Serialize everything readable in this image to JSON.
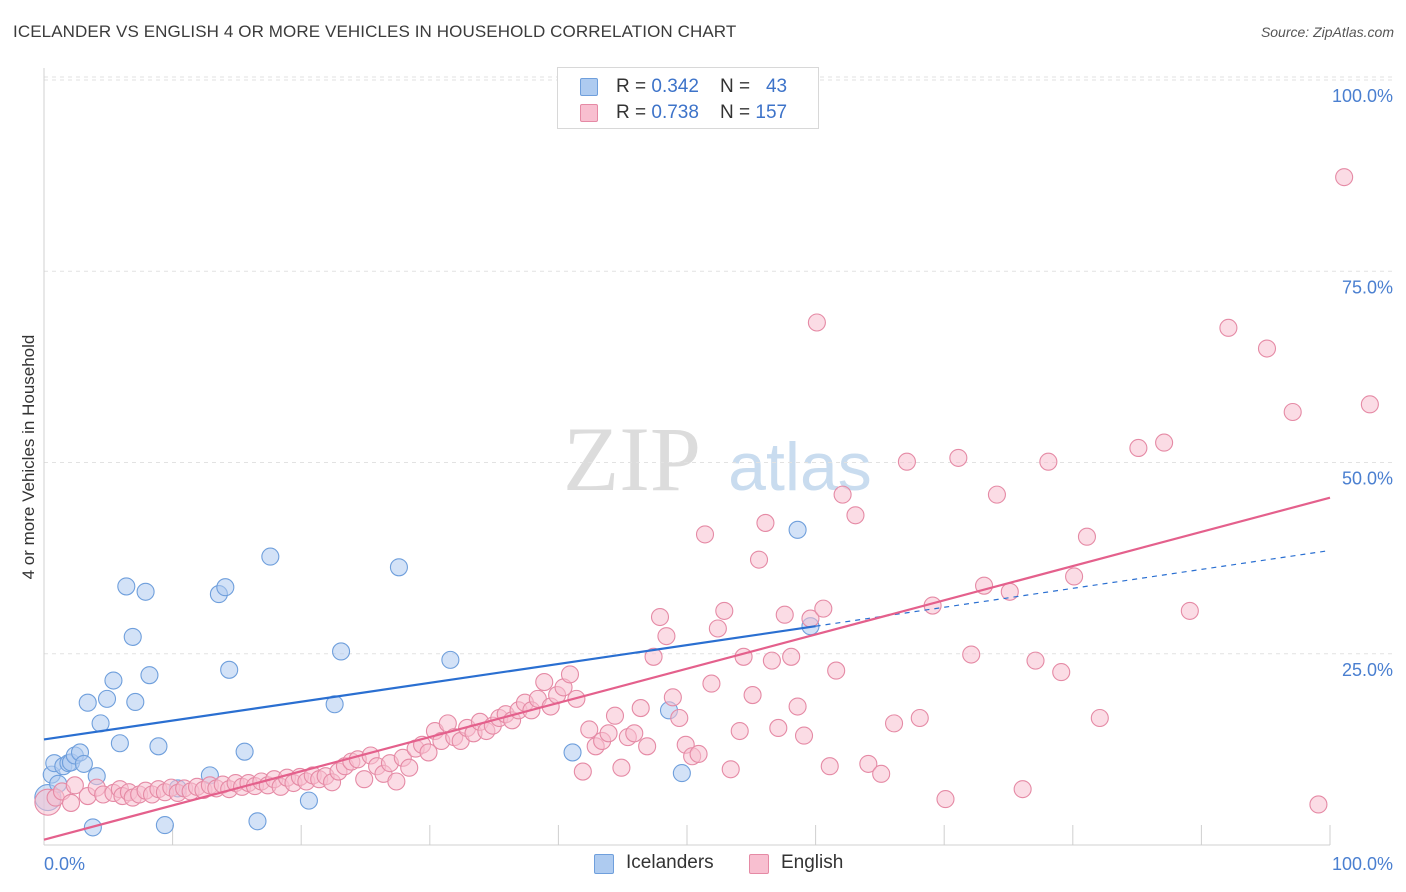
{
  "header": {
    "title": "ICELANDER VS ENGLISH 4 OR MORE VEHICLES IN HOUSEHOLD CORRELATION CHART",
    "source": "Source: ZipAtlas.com"
  },
  "watermark": {
    "zip": "ZIP",
    "atlas": "atlas"
  },
  "legend": {
    "rows": [
      {
        "r_label": "R = ",
        "r_value": "0.342",
        "n_label": "N = ",
        "n_value": "43",
        "color": "#aecbf0",
        "border": "#6f9fdc"
      },
      {
        "r_label": "R = ",
        "r_value": "0.738",
        "n_label": "N = ",
        "n_value": "157",
        "color": "#f8bfd0",
        "border": "#e58aa5"
      }
    ]
  },
  "bottom_legend": [
    {
      "label": "Icelanders",
      "color": "#aecbf0",
      "border": "#6f9fdc"
    },
    {
      "label": "English",
      "color": "#f8bfd0",
      "border": "#e58aa5"
    }
  ],
  "chart_data": {
    "type": "scatter",
    "title": "ICELANDER VS ENGLISH 4 OR MORE VEHICLES IN HOUSEHOLD CORRELATION CHART",
    "xlabel": "",
    "ylabel": "4 or more Vehicles in Household",
    "xlim": [
      0,
      100
    ],
    "ylim": [
      0,
      100
    ],
    "x_tick_labels": [
      "0.0%",
      "100.0%"
    ],
    "y_tick_labels": [
      "25.0%",
      "50.0%",
      "75.0%",
      "100.0%"
    ],
    "y_ticks": [
      25,
      50,
      75,
      100
    ],
    "grid": true,
    "legend_position": "top-center",
    "series": [
      {
        "name": "Icelanders",
        "color": "#aecbf0",
        "stroke": "#6f9fdc",
        "line_color": "#2a6fd1",
        "trend": {
          "x": [
            0,
            60
          ],
          "y": [
            13.8,
            28.6
          ],
          "dashed_to": [
            100,
            38.5
          ]
        },
        "points": [
          [
            0.3,
            6.2
          ],
          [
            0.6,
            9.2
          ],
          [
            0.8,
            10.7
          ],
          [
            1.1,
            8.0
          ],
          [
            1.5,
            10.3
          ],
          [
            1.9,
            10.7
          ],
          [
            2.1,
            10.8
          ],
          [
            2.4,
            11.7
          ],
          [
            2.8,
            12.1
          ],
          [
            3.1,
            10.6
          ],
          [
            3.4,
            18.6
          ],
          [
            3.8,
            2.3
          ],
          [
            4.1,
            9.0
          ],
          [
            4.4,
            15.9
          ],
          [
            4.9,
            19.1
          ],
          [
            5.4,
            21.5
          ],
          [
            5.9,
            13.3
          ],
          [
            6.4,
            33.8
          ],
          [
            6.9,
            27.2
          ],
          [
            7.1,
            18.7
          ],
          [
            7.9,
            33.1
          ],
          [
            8.2,
            22.2
          ],
          [
            8.9,
            12.9
          ],
          [
            9.4,
            2.6
          ],
          [
            10.4,
            7.4
          ],
          [
            12.9,
            9.1
          ],
          [
            13.6,
            32.8
          ],
          [
            14.1,
            33.7
          ],
          [
            14.4,
            22.9
          ],
          [
            15.6,
            12.2
          ],
          [
            16.6,
            3.1
          ],
          [
            17.6,
            37.7
          ],
          [
            20.6,
            5.8
          ],
          [
            22.6,
            18.4
          ],
          [
            23.1,
            25.3
          ],
          [
            27.6,
            36.3
          ],
          [
            31.6,
            24.2
          ],
          [
            41.1,
            12.1
          ],
          [
            48.6,
            17.6
          ],
          [
            49.6,
            9.4
          ],
          [
            58.6,
            41.2
          ],
          [
            59.6,
            28.6
          ]
        ]
      },
      {
        "name": "English",
        "color": "#f8bfd0",
        "stroke": "#e58aa5",
        "line_color": "#e4608c",
        "trend": {
          "x": [
            0,
            100
          ],
          "y": [
            0.7,
            45.4
          ]
        },
        "points": [
          [
            0.3,
            5.6
          ],
          [
            0.9,
            6.2
          ],
          [
            1.4,
            7.0
          ],
          [
            2.1,
            5.5
          ],
          [
            2.4,
            7.8
          ],
          [
            3.4,
            6.4
          ],
          [
            4.1,
            7.5
          ],
          [
            4.6,
            6.6
          ],
          [
            5.4,
            6.8
          ],
          [
            5.9,
            7.3
          ],
          [
            6.1,
            6.4
          ],
          [
            6.6,
            6.9
          ],
          [
            6.9,
            6.2
          ],
          [
            7.4,
            6.6
          ],
          [
            7.9,
            7.1
          ],
          [
            8.4,
            6.6
          ],
          [
            8.9,
            7.3
          ],
          [
            9.4,
            6.9
          ],
          [
            9.9,
            7.5
          ],
          [
            10.4,
            6.8
          ],
          [
            10.9,
            7.4
          ],
          [
            11.4,
            7.0
          ],
          [
            11.9,
            7.6
          ],
          [
            12.4,
            7.2
          ],
          [
            12.9,
            7.8
          ],
          [
            13.4,
            7.4
          ],
          [
            13.9,
            7.9
          ],
          [
            14.4,
            7.3
          ],
          [
            14.9,
            8.1
          ],
          [
            15.4,
            7.6
          ],
          [
            15.9,
            8.1
          ],
          [
            16.4,
            7.7
          ],
          [
            16.9,
            8.3
          ],
          [
            17.4,
            7.8
          ],
          [
            17.9,
            8.6
          ],
          [
            18.4,
            7.6
          ],
          [
            18.9,
            8.8
          ],
          [
            19.4,
            8.1
          ],
          [
            19.9,
            8.9
          ],
          [
            20.4,
            8.3
          ],
          [
            20.9,
            9.1
          ],
          [
            21.4,
            8.6
          ],
          [
            21.9,
            9.0
          ],
          [
            22.4,
            8.2
          ],
          [
            22.9,
            9.6
          ],
          [
            23.4,
            10.3
          ],
          [
            23.9,
            10.9
          ],
          [
            24.4,
            11.2
          ],
          [
            24.9,
            8.6
          ],
          [
            25.4,
            11.7
          ],
          [
            25.9,
            10.3
          ],
          [
            26.4,
            9.3
          ],
          [
            26.9,
            10.7
          ],
          [
            27.4,
            8.3
          ],
          [
            27.9,
            11.4
          ],
          [
            28.4,
            10.1
          ],
          [
            28.9,
            12.6
          ],
          [
            29.4,
            13.1
          ],
          [
            29.9,
            12.1
          ],
          [
            30.4,
            14.9
          ],
          [
            30.9,
            13.6
          ],
          [
            31.4,
            15.9
          ],
          [
            31.9,
            14.1
          ],
          [
            32.4,
            13.6
          ],
          [
            32.9,
            15.3
          ],
          [
            33.4,
            14.6
          ],
          [
            33.9,
            16.1
          ],
          [
            34.4,
            14.9
          ],
          [
            34.9,
            15.6
          ],
          [
            35.4,
            16.6
          ],
          [
            35.9,
            17.1
          ],
          [
            36.4,
            16.3
          ],
          [
            36.9,
            17.6
          ],
          [
            37.4,
            18.6
          ],
          [
            37.9,
            17.6
          ],
          [
            38.4,
            19.1
          ],
          [
            38.9,
            21.3
          ],
          [
            39.4,
            18.1
          ],
          [
            39.9,
            19.6
          ],
          [
            40.4,
            20.6
          ],
          [
            40.9,
            22.3
          ],
          [
            41.4,
            19.1
          ],
          [
            41.9,
            9.6
          ],
          [
            42.4,
            15.1
          ],
          [
            42.9,
            12.9
          ],
          [
            43.4,
            13.6
          ],
          [
            43.9,
            14.6
          ],
          [
            44.4,
            16.9
          ],
          [
            44.9,
            10.1
          ],
          [
            45.4,
            14.1
          ],
          [
            45.9,
            14.6
          ],
          [
            46.4,
            17.9
          ],
          [
            46.9,
            12.9
          ],
          [
            47.4,
            24.6
          ],
          [
            47.9,
            29.8
          ],
          [
            48.4,
            27.3
          ],
          [
            48.9,
            19.3
          ],
          [
            49.4,
            16.6
          ],
          [
            49.9,
            13.1
          ],
          [
            50.4,
            11.6
          ],
          [
            50.9,
            11.9
          ],
          [
            51.4,
            40.6
          ],
          [
            51.9,
            21.1
          ],
          [
            52.4,
            28.3
          ],
          [
            52.9,
            30.6
          ],
          [
            53.4,
            9.9
          ],
          [
            54.1,
            14.9
          ],
          [
            54.4,
            24.6
          ],
          [
            55.1,
            19.6
          ],
          [
            55.6,
            37.3
          ],
          [
            56.1,
            42.1
          ],
          [
            56.6,
            24.1
          ],
          [
            57.1,
            15.3
          ],
          [
            57.6,
            30.1
          ],
          [
            58.1,
            24.6
          ],
          [
            58.6,
            18.1
          ],
          [
            59.1,
            14.3
          ],
          [
            59.6,
            29.6
          ],
          [
            60.1,
            68.3
          ],
          [
            60.6,
            30.9
          ],
          [
            61.1,
            10.3
          ],
          [
            61.6,
            22.8
          ],
          [
            62.1,
            45.8
          ],
          [
            63.1,
            43.1
          ],
          [
            64.1,
            10.6
          ],
          [
            65.1,
            9.3
          ],
          [
            66.1,
            15.9
          ],
          [
            67.1,
            50.1
          ],
          [
            68.1,
            16.6
          ],
          [
            69.1,
            31.3
          ],
          [
            70.1,
            6.0
          ],
          [
            71.1,
            50.6
          ],
          [
            72.1,
            24.9
          ],
          [
            73.1,
            33.9
          ],
          [
            74.1,
            45.8
          ],
          [
            75.1,
            33.1
          ],
          [
            76.1,
            7.3
          ],
          [
            77.1,
            24.1
          ],
          [
            78.1,
            50.1
          ],
          [
            79.1,
            22.6
          ],
          [
            80.1,
            35.1
          ],
          [
            81.1,
            40.3
          ],
          [
            82.1,
            16.6
          ],
          [
            85.1,
            51.9
          ],
          [
            87.1,
            52.6
          ],
          [
            89.1,
            30.6
          ],
          [
            92.1,
            67.6
          ],
          [
            95.1,
            64.9
          ],
          [
            97.1,
            56.6
          ],
          [
            99.1,
            5.3
          ],
          [
            101.1,
            87.3
          ],
          [
            103.1,
            57.6
          ]
        ]
      }
    ]
  }
}
